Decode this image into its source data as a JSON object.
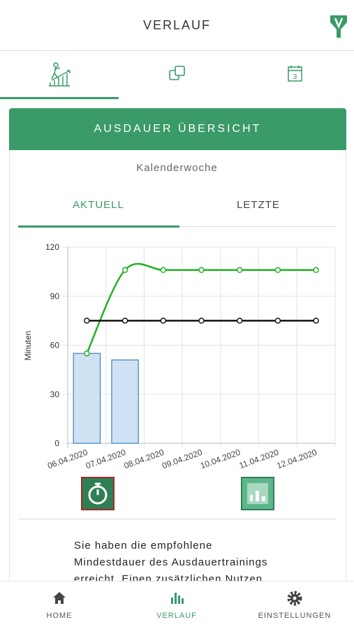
{
  "header": {
    "title": "VERLAUF"
  },
  "card": {
    "title": "AUSDAUER ÜBERSICHT",
    "subtitle": "Kalenderwoche",
    "tabs": [
      "AKTUELL",
      "LETZTE"
    ]
  },
  "chart_data": {
    "type": "bar",
    "y_label": "Minuten",
    "categories": [
      "06.04.2020",
      "07.04.2020",
      "08.04.2020",
      "09.04.2020",
      "10.04.2020",
      "11.04.2020",
      "12.04.2020"
    ],
    "series": [
      {
        "type": "bar",
        "color": "#cfe2f3",
        "values": [
          55,
          51,
          null,
          null,
          null,
          null,
          null
        ]
      },
      {
        "type": "line",
        "color": "#22b022",
        "values": [
          55,
          106,
          106,
          106,
          106,
          106,
          106
        ]
      },
      {
        "type": "line",
        "color": "#111111",
        "values": [
          75,
          75,
          75,
          75,
          75,
          75,
          75
        ]
      }
    ],
    "ylim": [
      0,
      120
    ],
    "yticks": [
      0,
      30,
      60,
      90,
      120
    ],
    "grid": true
  },
  "message": {
    "lines": [
      "Sie haben die empfohlene",
      "Mindestdauer des Ausdauertrainings",
      "erreicht. Einen zusätzlichen Nutzen"
    ]
  },
  "nav": [
    "HOME",
    "VERLAUF",
    "EINSTELLUNGEN"
  ]
}
